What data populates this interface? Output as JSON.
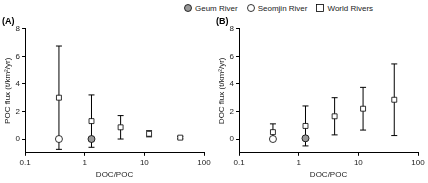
{
  "chart_data": [
    {
      "type": "scatter",
      "title": "(A)",
      "x_label": "DOC/POC",
      "y_label": "POC flux (t/km²/yr)",
      "log": "x",
      "grid": false,
      "xlim": [
        0.1,
        100
      ],
      "xticks": [
        0.1,
        1,
        10,
        100
      ],
      "ylim": [
        -1,
        8
      ],
      "yticks": [
        0,
        2,
        4,
        6,
        8
      ],
      "series": [
        {
          "name": "Geum River",
          "color": "#999999",
          "marker": "circle",
          "x": [
            1.3
          ],
          "values": [
            0.0
          ]
        },
        {
          "name": "Seomjin River",
          "color": "#ffffff",
          "marker": "circle",
          "x": [
            0.37
          ],
          "values": [
            0.0
          ]
        },
        {
          "name": "World Rivers",
          "color": "#ffffff",
          "marker": "square",
          "x": [
            0.37,
            1.3,
            4,
            12,
            40
          ],
          "values": [
            3.0,
            1.3,
            0.85,
            0.38,
            0.1
          ],
          "error": [
            3.75,
            1.9,
            0.85,
            0.22,
            0.08
          ]
        }
      ]
    },
    {
      "type": "scatter",
      "title": "(B)",
      "x_label": "DOC/POC",
      "y_label": "DOC flux (t/km²/yr)",
      "log": "x",
      "grid": false,
      "legend": "top",
      "xlim": [
        0.1,
        100
      ],
      "xticks": [
        0.1,
        1,
        10,
        100
      ],
      "ylim": [
        -1,
        8
      ],
      "yticks": [
        0,
        2,
        4,
        6,
        8
      ],
      "series": [
        {
          "name": "Geum River",
          "color": "#999999",
          "marker": "circle",
          "x": [
            1.3
          ],
          "values": [
            0.05
          ]
        },
        {
          "name": "Seomjin River",
          "color": "#ffffff",
          "marker": "circle",
          "x": [
            0.37
          ],
          "values": [
            0.0
          ]
        },
        {
          "name": "World Rivers",
          "color": "#ffffff",
          "marker": "square",
          "x": [
            0.37,
            1.3,
            4,
            12,
            40
          ],
          "values": [
            0.5,
            0.95,
            1.65,
            2.2,
            2.85
          ],
          "error": [
            0.6,
            1.45,
            1.35,
            1.55,
            2.6
          ]
        }
      ]
    }
  ]
}
